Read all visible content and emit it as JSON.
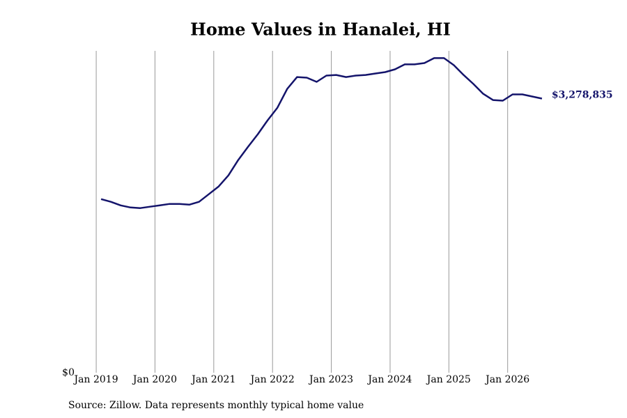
{
  "chart_data": {
    "type": "line",
    "title": "Home Values in Hanalei, HI",
    "source": "Source: Zillow. Data represents monthly typical home value",
    "x": [
      "2019-02",
      "2019-04",
      "2019-06",
      "2019-08",
      "2019-10",
      "2019-12",
      "2020-02",
      "2020-04",
      "2020-06",
      "2020-08",
      "2020-10",
      "2020-12",
      "2021-02",
      "2021-04",
      "2021-06",
      "2021-08",
      "2021-10",
      "2021-12",
      "2022-02",
      "2022-04",
      "2022-06",
      "2022-08",
      "2022-10",
      "2022-12",
      "2023-02",
      "2023-04",
      "2023-06",
      "2023-08",
      "2023-10",
      "2023-12",
      "2024-02",
      "2024-04",
      "2024-06",
      "2024-08",
      "2024-10",
      "2024-12",
      "2025-02",
      "2025-04",
      "2025-06",
      "2025-08",
      "2025-10",
      "2025-12",
      "2026-02",
      "2026-04",
      "2026-06",
      "2026-08"
    ],
    "series": [
      {
        "name": "Typical home value",
        "color": "#14146b",
        "values": [
          2077000,
          2044000,
          2002000,
          1977000,
          1969000,
          1986000,
          2002000,
          2019000,
          2019000,
          2010000,
          2044000,
          2136000,
          2228000,
          2361000,
          2545000,
          2703000,
          2853000,
          3020000,
          3170000,
          3396000,
          3537000,
          3529000,
          3479000,
          3554000,
          3562000,
          3537000,
          3554000,
          3562000,
          3579000,
          3596000,
          3629000,
          3688000,
          3688000,
          3704000,
          3763000,
          3763000,
          3679000,
          3562000,
          3454000,
          3337000,
          3262000,
          3254000,
          3329000,
          3329000,
          3304000,
          3278835
        ],
        "value_labels": [
          null,
          null,
          null,
          null,
          null,
          null,
          null,
          null,
          null,
          null,
          null,
          null,
          null,
          null,
          null,
          null,
          null,
          null,
          null,
          null,
          null,
          null,
          null,
          null,
          null,
          null,
          null,
          null,
          null,
          null,
          null,
          null,
          null,
          null,
          null,
          null,
          null,
          null,
          null,
          null,
          null,
          null,
          null,
          null,
          null,
          "$3,278,835"
        ]
      }
    ],
    "xlim": [
      "2018-10",
      "2026-11"
    ],
    "xticks": [
      {
        "value": "2019-01",
        "label": "Jan 2019"
      },
      {
        "value": "2020-01",
        "label": "Jan 2020"
      },
      {
        "value": "2021-01",
        "label": "Jan 2021"
      },
      {
        "value": "2022-01",
        "label": "Jan 2022"
      },
      {
        "value": "2023-01",
        "label": "Jan 2023"
      },
      {
        "value": "2024-01",
        "label": "Jan 2024"
      },
      {
        "value": "2025-01",
        "label": "Jan 2025"
      },
      {
        "value": "2026-01",
        "label": "Jan 2026"
      }
    ],
    "ylim": [
      0,
      3850000
    ],
    "yticks": [
      {
        "value": 0,
        "label": "$0"
      }
    ],
    "grid": true
  }
}
